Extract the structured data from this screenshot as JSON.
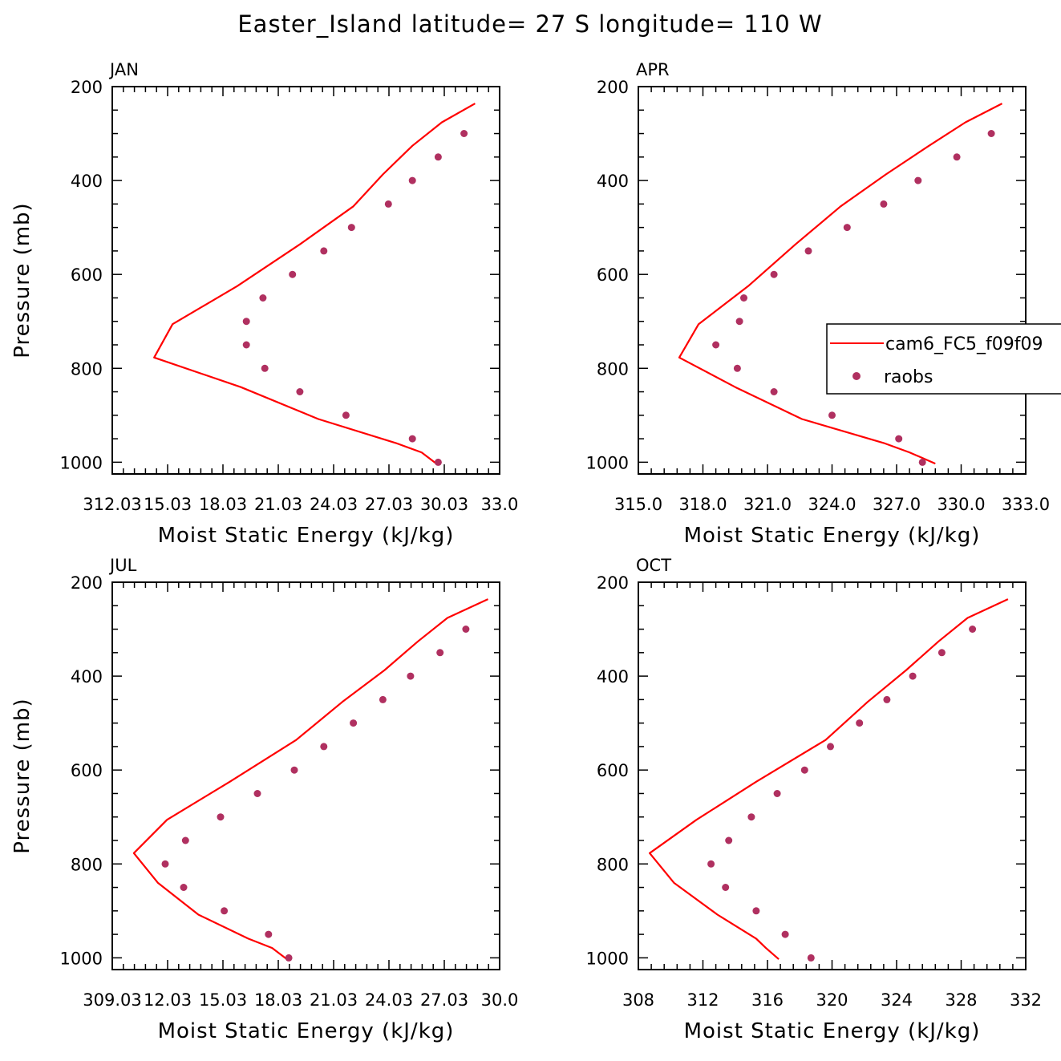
{
  "figure_title": "Easter_Island  latitude= 27 S longitude= 110 W",
  "colors": {
    "model": "#ff0000",
    "obs": "#b03060",
    "axis": "#000000"
  },
  "legend": {
    "model_label": "cam6_FC5_f09f09",
    "obs_label": "raobs",
    "placement": "right-middle, clipped at page edge"
  },
  "chart_data": [
    {
      "type": "line",
      "panel_label": "JAN",
      "xlabel": "Moist Static Energy (kJ/kg)",
      "ylabel": "Pressure (mb)",
      "xlim": [
        312.03,
        333.03
      ],
      "xticks": [
        312.03,
        315.03,
        318.03,
        321.03,
        324.03,
        327.03,
        330.03,
        333.03
      ],
      "xtick_labels": [
        "312.03",
        "15.03",
        "18.03",
        "21.03",
        "24.03",
        "27.03",
        "30.03",
        "33.0"
      ],
      "ylim": [
        1025,
        200
      ],
      "yticks": [
        200,
        400,
        600,
        800,
        1000
      ],
      "series": [
        {
          "name": "cam6_FC5_f09f09",
          "kind": "line",
          "points": [
            [
              331.7,
              236
            ],
            [
              329.9,
              276
            ],
            [
              328.3,
              326
            ],
            [
              326.7,
              387
            ],
            [
              325.1,
              455
            ],
            [
              322.2,
              536
            ],
            [
              318.8,
              625
            ],
            [
              315.3,
              706
            ],
            [
              314.3,
              777
            ],
            [
              319.0,
              840
            ],
            [
              323.2,
              908
            ],
            [
              327.4,
              959
            ],
            [
              328.8,
              979
            ],
            [
              329.6,
              1003
            ]
          ]
        },
        {
          "name": "raobs",
          "kind": "points",
          "points": [
            [
              331.1,
              300
            ],
            [
              329.7,
              350
            ],
            [
              328.3,
              400
            ],
            [
              327.0,
              450
            ],
            [
              325.0,
              500
            ],
            [
              323.5,
              550
            ],
            [
              321.8,
              600
            ],
            [
              320.2,
              650
            ],
            [
              319.3,
              700
            ],
            [
              319.3,
              750
            ],
            [
              320.3,
              800
            ],
            [
              322.2,
              850
            ],
            [
              324.7,
              900
            ],
            [
              328.3,
              950
            ],
            [
              329.7,
              1000
            ]
          ]
        }
      ]
    },
    {
      "type": "line",
      "panel_label": "APR",
      "xlabel": "Moist Static Energy (kJ/kg)",
      "ylabel": "",
      "xlim": [
        315.0,
        333.0
      ],
      "xticks": [
        315,
        318,
        321,
        324,
        327,
        330,
        333
      ],
      "xtick_labels": [
        "315.0",
        "318.0",
        "321.0",
        "324.0",
        "327.0",
        "330.0",
        "333.0"
      ],
      "ylim": [
        1025,
        200
      ],
      "yticks": [
        200,
        400,
        600,
        800,
        1000
      ],
      "series": [
        {
          "name": "cam6_FC5_f09f09",
          "kind": "line",
          "points": [
            [
              331.9,
              236
            ],
            [
              330.2,
              276
            ],
            [
              328.5,
              326
            ],
            [
              326.5,
              387
            ],
            [
              324.4,
              455
            ],
            [
              322.3,
              536
            ],
            [
              320.1,
              625
            ],
            [
              317.8,
              706
            ],
            [
              316.9,
              777
            ],
            [
              319.5,
              840
            ],
            [
              322.6,
              908
            ],
            [
              326.4,
              959
            ],
            [
              327.6,
              979
            ],
            [
              328.8,
              1003
            ]
          ]
        },
        {
          "name": "raobs",
          "kind": "points",
          "points": [
            [
              331.4,
              300
            ],
            [
              329.8,
              350
            ],
            [
              328.0,
              400
            ],
            [
              326.4,
              450
            ],
            [
              324.7,
              500
            ],
            [
              322.9,
              550
            ],
            [
              321.3,
              600
            ],
            [
              319.9,
              650
            ],
            [
              319.7,
              700
            ],
            [
              318.6,
              750
            ],
            [
              319.6,
              800
            ],
            [
              321.3,
              850
            ],
            [
              324.0,
              900
            ],
            [
              327.1,
              950
            ],
            [
              328.2,
              1000
            ]
          ]
        }
      ]
    },
    {
      "type": "line",
      "panel_label": "JUL",
      "xlabel": "Moist Static Energy (kJ/kg)",
      "ylabel": "Pressure (mb)",
      "xlim": [
        309.03,
        330.03
      ],
      "xticks": [
        309.03,
        312.03,
        315.03,
        318.03,
        321.03,
        324.03,
        327.03,
        330.03
      ],
      "xtick_labels": [
        "309.03",
        "12.03",
        "15.03",
        "18.03",
        "21.03",
        "24.03",
        "27.03",
        "30.0"
      ],
      "ylim": [
        1025,
        200
      ],
      "yticks": [
        200,
        400,
        600,
        800,
        1000
      ],
      "series": [
        {
          "name": "cam6_FC5_f09f09",
          "kind": "line",
          "points": [
            [
              329.4,
              236
            ],
            [
              327.2,
              276
            ],
            [
              325.6,
              326
            ],
            [
              323.8,
              387
            ],
            [
              321.5,
              455
            ],
            [
              319.0,
              536
            ],
            [
              315.4,
              625
            ],
            [
              312.0,
              706
            ],
            [
              310.2,
              777
            ],
            [
              311.5,
              840
            ],
            [
              313.7,
              908
            ],
            [
              316.4,
              959
            ],
            [
              317.7,
              979
            ],
            [
              318.5,
              1003
            ]
          ]
        },
        {
          "name": "raobs",
          "kind": "points",
          "points": [
            [
              328.2,
              300
            ],
            [
              326.8,
              350
            ],
            [
              325.2,
              400
            ],
            [
              323.7,
              450
            ],
            [
              322.1,
              500
            ],
            [
              320.5,
              550
            ],
            [
              318.9,
              600
            ],
            [
              316.9,
              650
            ],
            [
              314.9,
              700
            ],
            [
              313.0,
              750
            ],
            [
              311.9,
              800
            ],
            [
              312.9,
              850
            ],
            [
              315.1,
              900
            ],
            [
              317.5,
              950
            ],
            [
              318.6,
              1000
            ]
          ]
        }
      ]
    },
    {
      "type": "line",
      "panel_label": "OCT",
      "xlabel": "Moist Static Energy (kJ/kg)",
      "ylabel": "",
      "xlim": [
        308,
        332
      ],
      "xticks": [
        308,
        312,
        316,
        320,
        324,
        328,
        332
      ],
      "xtick_labels": [
        "308",
        "312",
        "316",
        "320",
        "324",
        "328",
        "332"
      ],
      "ylim": [
        1025,
        200
      ],
      "yticks": [
        200,
        400,
        600,
        800,
        1000
      ],
      "series": [
        {
          "name": "cam6_FC5_f09f09",
          "kind": "line",
          "points": [
            [
              330.9,
              236
            ],
            [
              328.4,
              276
            ],
            [
              326.6,
              326
            ],
            [
              324.6,
              387
            ],
            [
              322.2,
              455
            ],
            [
              319.6,
              536
            ],
            [
              315.3,
              625
            ],
            [
              311.6,
              706
            ],
            [
              308.7,
              777
            ],
            [
              310.2,
              840
            ],
            [
              312.9,
              908
            ],
            [
              315.3,
              959
            ],
            [
              315.9,
              979
            ],
            [
              316.7,
              1003
            ]
          ]
        },
        {
          "name": "raobs",
          "kind": "points",
          "points": [
            [
              328.7,
              300
            ],
            [
              326.8,
              350
            ],
            [
              325.0,
              400
            ],
            [
              323.4,
              450
            ],
            [
              321.7,
              500
            ],
            [
              319.9,
              550
            ],
            [
              318.3,
              600
            ],
            [
              316.6,
              650
            ],
            [
              315.0,
              700
            ],
            [
              313.6,
              750
            ],
            [
              312.5,
              800
            ],
            [
              313.4,
              850
            ],
            [
              315.3,
              900
            ],
            [
              317.1,
              950
            ],
            [
              318.7,
              1000
            ]
          ]
        }
      ]
    }
  ]
}
